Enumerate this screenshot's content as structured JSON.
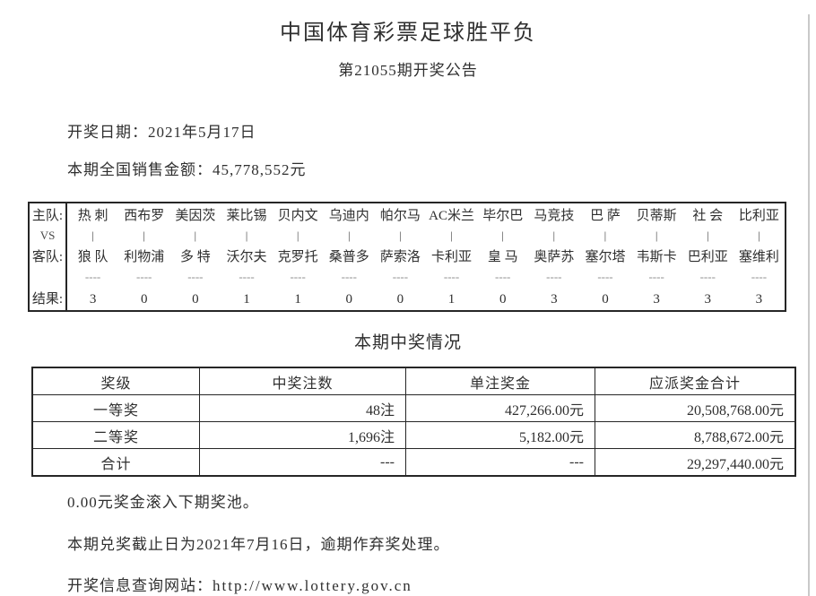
{
  "header": {
    "title": "中国体育彩票足球胜平负",
    "subtitle": "第21055期开奖公告"
  },
  "info": {
    "draw_date_line": "开奖日期：2021年5月17日",
    "sales_line": "本期全国销售金额：45,778,552元"
  },
  "match_table": {
    "row_labels": {
      "home": "主队:",
      "vs": "VS",
      "away": "客队:",
      "result": "结果:"
    },
    "vs_symbol": "|",
    "separator": "----",
    "matches": [
      {
        "home": "热 刺",
        "away": "狼 队",
        "result": "3"
      },
      {
        "home": "西布罗",
        "away": "利物浦",
        "result": "0"
      },
      {
        "home": "美因茨",
        "away": "多 特",
        "result": "0"
      },
      {
        "home": "莱比锡",
        "away": "沃尔夫",
        "result": "1"
      },
      {
        "home": "贝内文",
        "away": "克罗托",
        "result": "1"
      },
      {
        "home": "乌迪内",
        "away": "桑普多",
        "result": "0"
      },
      {
        "home": "帕尔马",
        "away": "萨索洛",
        "result": "0"
      },
      {
        "home": "AC米兰",
        "away": "卡利亚",
        "result": "1"
      },
      {
        "home": "毕尔巴",
        "away": "皇 马",
        "result": "0"
      },
      {
        "home": "马竞技",
        "away": "奥萨苏",
        "result": "3"
      },
      {
        "home": "巴 萨",
        "away": "塞尔塔",
        "result": "0"
      },
      {
        "home": "贝蒂斯",
        "away": "韦斯卡",
        "result": "3"
      },
      {
        "home": "社 会",
        "away": "巴利亚",
        "result": "3"
      },
      {
        "home": "比利亚",
        "away": "塞维利",
        "result": "3"
      }
    ]
  },
  "prize_section": {
    "title": "本期中奖情况",
    "table": {
      "headers": [
        "奖级",
        "中奖注数",
        "单注奖金",
        "应派奖金合计"
      ],
      "rows": [
        [
          "一等奖",
          "48注",
          "427,266.00元",
          "20,508,768.00元"
        ],
        [
          "二等奖",
          "1,696注",
          "5,182.00元",
          "8,788,672.00元"
        ],
        [
          "合计",
          "---",
          "---",
          "29,297,440.00元"
        ]
      ]
    }
  },
  "footer": {
    "rollover_line": "0.00元奖金滚入下期奖池。",
    "deadline_line": "本期兑奖截止日为2021年7月16日，逾期作弃奖处理。",
    "website_label": "开奖信息查询网站：",
    "website_url": "http://www.lottery.gov.cn"
  }
}
